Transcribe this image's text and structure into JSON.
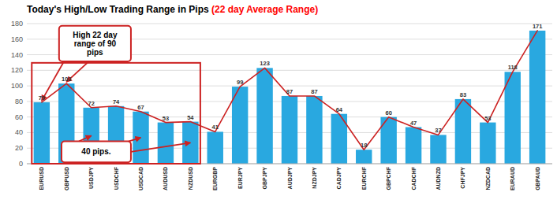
{
  "chart_data": {
    "type": "bar",
    "title": "Today's High/Low Trading Range in Pips ",
    "subtitle": "(22 day Average Range)",
    "categories": [
      "EURUSD",
      "GBPUSD",
      "USDJPY",
      "USDCHF",
      "USDCAD",
      "AUDUSD",
      "NZDUSD",
      "EURGBP",
      "EURJPY",
      "GBPJPY",
      "AUDJPY",
      "NZDJPY",
      "CADJPY",
      "EURCHF",
      "GBPCHF",
      "CADCHF",
      "AUDNZD",
      "CHFJPY",
      "NZDCAD",
      "EURAUD",
      "GBPAUD"
    ],
    "series": [
      {
        "type": "bar",
        "color": "#29a8e0",
        "values": [
          79,
          103,
          72,
          74,
          67,
          53,
          54,
          41,
          99,
          123,
          87,
          87,
          64,
          18,
          60,
          47,
          37,
          83,
          53,
          118,
          171
        ]
      },
      {
        "type": "line",
        "color": "#cc2222",
        "values": [
          79,
          103,
          72,
          74,
          67,
          53,
          54,
          41,
          99,
          123,
          87,
          87,
          64,
          18,
          60,
          47,
          37,
          83,
          53,
          118,
          171
        ]
      }
    ],
    "ylim": [
      0,
      180
    ],
    "yticks": [
      0,
      20,
      40,
      60,
      80,
      100,
      120,
      140,
      160,
      180
    ],
    "grid": true,
    "data_labels": true,
    "annotations": [
      "High 22 day\nrange of 90\npips",
      "40 pips."
    ]
  }
}
